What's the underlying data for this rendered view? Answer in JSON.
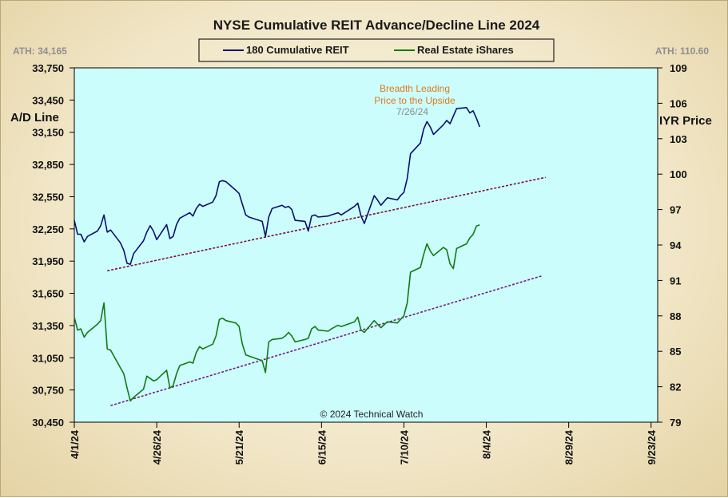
{
  "title": "NYSE Cumulative  REIT Advance/Decline Line 2024",
  "legend": [
    {
      "label": "180 Cumulative REIT",
      "color": "#0a0f6e"
    },
    {
      "label": "Real Estate iShares",
      "color": "#117a11"
    }
  ],
  "ath_left": "ATH: 34,165",
  "ath_right": "ATH: 110.60",
  "left_axis_title": "A/D Line",
  "right_axis_title": "IYR Price",
  "annotation": {
    "line1": "Breadth Leading",
    "line2": "Price to the Upside",
    "date": "7/26/24"
  },
  "copyright": "© 2024  Technical Watch",
  "colors": {
    "plot_bg": "#ccfdfd",
    "ad_line": "#0a0f6e",
    "iyr_line": "#117a11",
    "ad_trend": "#7a1232",
    "iyr_trend": "#7a1a7a",
    "annotation": "#e07a1c"
  },
  "chart_data": {
    "type": "line",
    "title": "NYSE Cumulative  REIT Advance/Decline Line 2024",
    "x_ticks": [
      "4/1/24",
      "4/26/24",
      "5/21/24",
      "6/15/24",
      "7/10/24",
      "8/4/24",
      "8/29/24",
      "9/23/24"
    ],
    "xlim": [
      "2024-04-01",
      "2024-09-25"
    ],
    "left_axis": {
      "label": "A/D Line",
      "ticks": [
        "30,450",
        "30,750",
        "31,050",
        "31,350",
        "31,650",
        "31,950",
        "32,250",
        "32,550",
        "32,850",
        "33,150",
        "33,450",
        "33,750"
      ],
      "ylim": [
        30450,
        33750
      ]
    },
    "right_axis": {
      "label": "IYR Price",
      "ticks": [
        "79",
        "82",
        "85",
        "88",
        "91",
        "94",
        "97",
        "100",
        "103",
        "106",
        "109"
      ],
      "ylim": [
        79,
        109
      ]
    },
    "grid": false,
    "series": [
      {
        "name": "180 Cumulative REIT",
        "axis": "left",
        "points": [
          [
            "2024-04-01",
            32330
          ],
          [
            "2024-04-02",
            32200
          ],
          [
            "2024-04-03",
            32200
          ],
          [
            "2024-04-04",
            32130
          ],
          [
            "2024-04-05",
            32180
          ],
          [
            "2024-04-08",
            32230
          ],
          [
            "2024-04-09",
            32280
          ],
          [
            "2024-04-10",
            32380
          ],
          [
            "2024-04-11",
            32220
          ],
          [
            "2024-04-12",
            32240
          ],
          [
            "2024-04-15",
            32120
          ],
          [
            "2024-04-16",
            32050
          ],
          [
            "2024-04-17",
            31930
          ],
          [
            "2024-04-18",
            31920
          ],
          [
            "2024-04-19",
            32020
          ],
          [
            "2024-04-22",
            32140
          ],
          [
            "2024-04-23",
            32220
          ],
          [
            "2024-04-24",
            32280
          ],
          [
            "2024-04-25",
            32230
          ],
          [
            "2024-04-26",
            32150
          ],
          [
            "2024-04-29",
            32290
          ],
          [
            "2024-04-30",
            32160
          ],
          [
            "2024-05-01",
            32180
          ],
          [
            "2024-05-02",
            32290
          ],
          [
            "2024-05-03",
            32350
          ],
          [
            "2024-05-06",
            32400
          ],
          [
            "2024-05-07",
            32370
          ],
          [
            "2024-05-08",
            32440
          ],
          [
            "2024-05-09",
            32480
          ],
          [
            "2024-05-10",
            32460
          ],
          [
            "2024-05-13",
            32500
          ],
          [
            "2024-05-14",
            32560
          ],
          [
            "2024-05-15",
            32690
          ],
          [
            "2024-05-16",
            32700
          ],
          [
            "2024-05-17",
            32690
          ],
          [
            "2024-05-20",
            32610
          ],
          [
            "2024-05-21",
            32580
          ],
          [
            "2024-05-22",
            32480
          ],
          [
            "2024-05-23",
            32380
          ],
          [
            "2024-05-24",
            32360
          ],
          [
            "2024-05-28",
            32320
          ],
          [
            "2024-05-29",
            32180
          ],
          [
            "2024-05-30",
            32360
          ],
          [
            "2024-05-31",
            32440
          ],
          [
            "2024-06-03",
            32470
          ],
          [
            "2024-06-04",
            32450
          ],
          [
            "2024-06-05",
            32460
          ],
          [
            "2024-06-06",
            32430
          ],
          [
            "2024-06-07",
            32330
          ],
          [
            "2024-06-10",
            32320
          ],
          [
            "2024-06-11",
            32230
          ],
          [
            "2024-06-12",
            32370
          ],
          [
            "2024-06-13",
            32380
          ],
          [
            "2024-06-14",
            32360
          ],
          [
            "2024-06-17",
            32370
          ],
          [
            "2024-06-18",
            32380
          ],
          [
            "2024-06-20",
            32400
          ],
          [
            "2024-06-21",
            32380
          ],
          [
            "2024-06-24",
            32440
          ],
          [
            "2024-06-25",
            32460
          ],
          [
            "2024-06-26",
            32490
          ],
          [
            "2024-06-27",
            32370
          ],
          [
            "2024-06-28",
            32300
          ],
          [
            "2024-07-01",
            32560
          ],
          [
            "2024-07-02",
            32520
          ],
          [
            "2024-07-03",
            32470
          ],
          [
            "2024-07-05",
            32540
          ],
          [
            "2024-07-08",
            32520
          ],
          [
            "2024-07-09",
            32560
          ],
          [
            "2024-07-10",
            32590
          ],
          [
            "2024-07-11",
            32720
          ],
          [
            "2024-07-12",
            32950
          ],
          [
            "2024-07-15",
            33050
          ],
          [
            "2024-07-16",
            33180
          ],
          [
            "2024-07-17",
            33250
          ],
          [
            "2024-07-18",
            33200
          ],
          [
            "2024-07-19",
            33130
          ],
          [
            "2024-07-22",
            33220
          ],
          [
            "2024-07-23",
            33260
          ],
          [
            "2024-07-24",
            33230
          ],
          [
            "2024-07-25",
            33300
          ],
          [
            "2024-07-26",
            33370
          ],
          [
            "2024-07-29",
            33380
          ],
          [
            "2024-07-30",
            33330
          ],
          [
            "2024-07-31",
            33350
          ],
          [
            "2024-08-01",
            33280
          ],
          [
            "2024-08-02",
            33200
          ]
        ]
      },
      {
        "name": "Real Estate iShares",
        "axis": "right",
        "points": [
          [
            "2024-04-01",
            87.9
          ],
          [
            "2024-04-02",
            86.8
          ],
          [
            "2024-04-03",
            86.9
          ],
          [
            "2024-04-04",
            86.2
          ],
          [
            "2024-04-05",
            86.6
          ],
          [
            "2024-04-08",
            87.3
          ],
          [
            "2024-04-09",
            87.6
          ],
          [
            "2024-04-10",
            89.1
          ],
          [
            "2024-04-11",
            85.2
          ],
          [
            "2024-04-12",
            85.1
          ],
          [
            "2024-04-15",
            83.6
          ],
          [
            "2024-04-16",
            83.1
          ],
          [
            "2024-04-17",
            81.9
          ],
          [
            "2024-04-18",
            80.8
          ],
          [
            "2024-04-19",
            81.1
          ],
          [
            "2024-04-22",
            81.8
          ],
          [
            "2024-04-23",
            82.9
          ],
          [
            "2024-04-24",
            82.7
          ],
          [
            "2024-04-25",
            82.5
          ],
          [
            "2024-04-26",
            82.6
          ],
          [
            "2024-04-29",
            83.4
          ],
          [
            "2024-04-30",
            81.9
          ],
          [
            "2024-05-01",
            82.1
          ],
          [
            "2024-05-02",
            83.1
          ],
          [
            "2024-05-03",
            83.8
          ],
          [
            "2024-05-06",
            84.1
          ],
          [
            "2024-05-07",
            84.0
          ],
          [
            "2024-05-08",
            84.9
          ],
          [
            "2024-05-09",
            85.4
          ],
          [
            "2024-05-10",
            85.2
          ],
          [
            "2024-05-13",
            85.6
          ],
          [
            "2024-05-14",
            86.3
          ],
          [
            "2024-05-15",
            87.7
          ],
          [
            "2024-05-16",
            87.8
          ],
          [
            "2024-05-17",
            87.6
          ],
          [
            "2024-05-20",
            87.4
          ],
          [
            "2024-05-21",
            87.1
          ],
          [
            "2024-05-22",
            85.6
          ],
          [
            "2024-05-23",
            84.7
          ],
          [
            "2024-05-24",
            84.6
          ],
          [
            "2024-05-28",
            84.2
          ],
          [
            "2024-05-29",
            83.2
          ],
          [
            "2024-05-30",
            85.8
          ],
          [
            "2024-05-31",
            86.0
          ],
          [
            "2024-06-03",
            86.1
          ],
          [
            "2024-06-04",
            86.3
          ],
          [
            "2024-06-05",
            86.6
          ],
          [
            "2024-06-06",
            86.3
          ],
          [
            "2024-06-07",
            85.8
          ],
          [
            "2024-06-10",
            86.0
          ],
          [
            "2024-06-11",
            86.1
          ],
          [
            "2024-06-12",
            86.9
          ],
          [
            "2024-06-13",
            87.1
          ],
          [
            "2024-06-14",
            86.8
          ],
          [
            "2024-06-17",
            86.7
          ],
          [
            "2024-06-18",
            86.9
          ],
          [
            "2024-06-20",
            87.2
          ],
          [
            "2024-06-21",
            87.1
          ],
          [
            "2024-06-24",
            87.4
          ],
          [
            "2024-06-25",
            87.5
          ],
          [
            "2024-06-26",
            87.9
          ],
          [
            "2024-06-27",
            86.8
          ],
          [
            "2024-06-28",
            86.6
          ],
          [
            "2024-07-01",
            87.6
          ],
          [
            "2024-07-02",
            87.3
          ],
          [
            "2024-07-03",
            87.0
          ],
          [
            "2024-07-05",
            87.5
          ],
          [
            "2024-07-08",
            87.4
          ],
          [
            "2024-07-09",
            87.7
          ],
          [
            "2024-07-10",
            88.0
          ],
          [
            "2024-07-11",
            89.1
          ],
          [
            "2024-07-12",
            91.7
          ],
          [
            "2024-07-15",
            92.1
          ],
          [
            "2024-07-16",
            93.2
          ],
          [
            "2024-07-17",
            94.1
          ],
          [
            "2024-07-18",
            93.5
          ],
          [
            "2024-07-19",
            93.1
          ],
          [
            "2024-07-22",
            93.8
          ],
          [
            "2024-07-23",
            93.6
          ],
          [
            "2024-07-24",
            92.4
          ],
          [
            "2024-07-25",
            92.0
          ],
          [
            "2024-07-26",
            93.7
          ],
          [
            "2024-07-29",
            94.1
          ],
          [
            "2024-07-30",
            94.6
          ],
          [
            "2024-07-31",
            94.9
          ],
          [
            "2024-08-01",
            95.6
          ],
          [
            "2024-08-02",
            95.7
          ]
        ]
      }
    ],
    "trendlines": [
      {
        "axis": "left",
        "from": [
          "2024-04-11",
          31860
        ],
        "to": [
          "2024-08-22",
          32730
        ]
      },
      {
        "axis": "right",
        "from": [
          "2024-04-12",
          80.4
        ],
        "to": [
          "2024-08-21",
          91.4
        ]
      }
    ],
    "annotations": [
      {
        "text": "Breadth Leading",
        "x": "2024-07-26"
      },
      {
        "text": "Price to the Upside",
        "x": "2024-07-26"
      },
      {
        "text": "7/26/24",
        "x": "2024-07-26"
      }
    ]
  }
}
